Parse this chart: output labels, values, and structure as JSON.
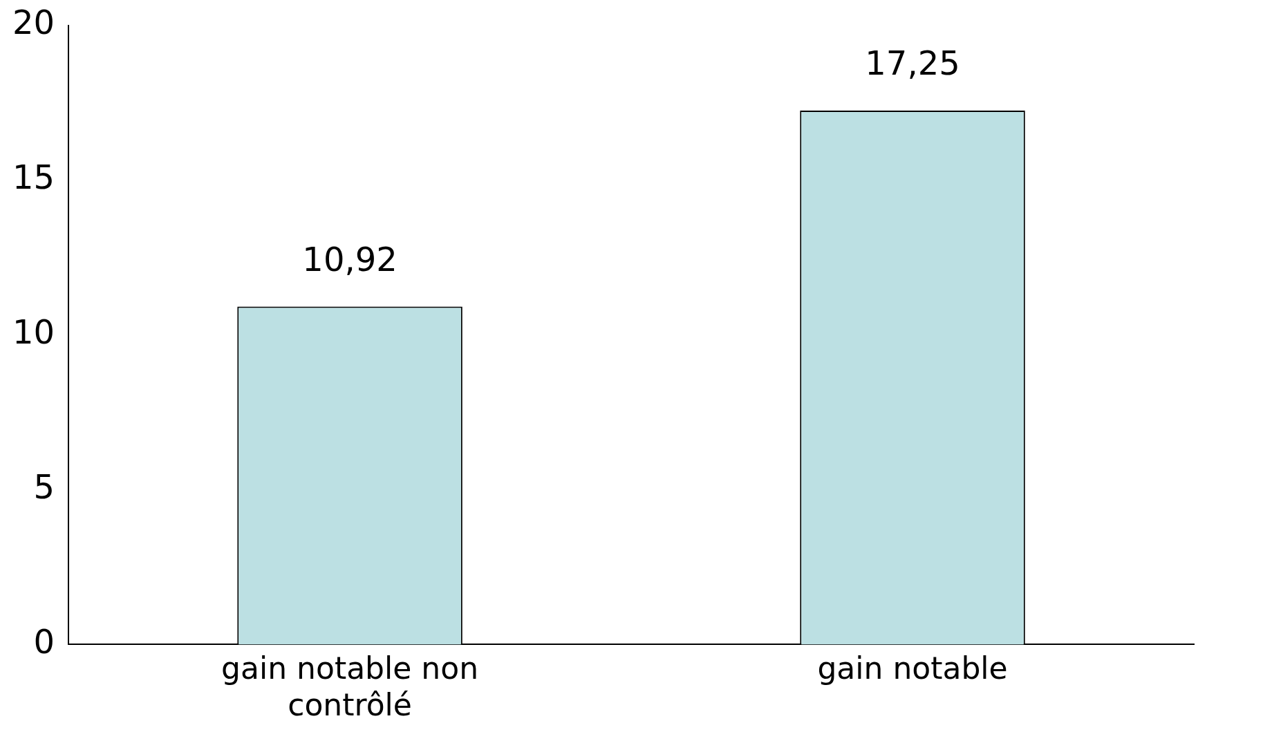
{
  "chart_data": {
    "type": "bar",
    "categories": [
      "gain notable non contrôlé",
      "gain notable"
    ],
    "values": [
      10.92,
      17.25
    ],
    "color": "#bce0e3",
    "value_labels": [
      "10,92",
      "17,25"
    ],
    "ylim": [
      0,
      20
    ],
    "yticks": [
      0,
      5,
      10,
      15,
      20
    ],
    "grid": false,
    "legend": false
  }
}
